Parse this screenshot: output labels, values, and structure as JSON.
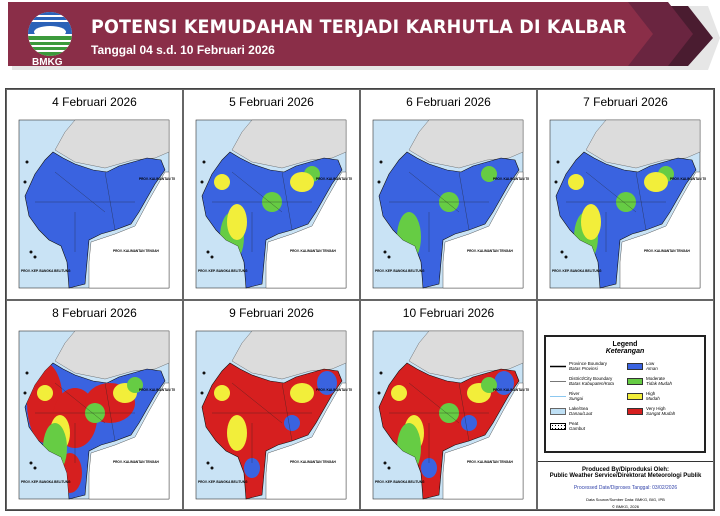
{
  "header": {
    "title": "POTENSI KEMUDAHAN TERJADI KARHUTLA DI KALBAR",
    "subtitle": "Tanggal  04 s.d. 10 Februari  2026",
    "logo_text": "BMKG",
    "color": "#8a2e48"
  },
  "map_labels": {
    "kalteng": "PROV. KALIMANTAN TENGAH",
    "kaltim": "PROV. KALIMANTAN TIMUR",
    "babel": "PROV. KEP. BANGKA BELITUNG"
  },
  "levels": {
    "low": "#3a63e0",
    "moderate": "#66cc44",
    "high": "#f2ee3a",
    "very_high": "#d61f1f"
  },
  "maps": [
    {
      "date": "4 Februari 2026",
      "dominant": "low",
      "patches": []
    },
    {
      "date": "5 Februari 2026",
      "dominant": "low",
      "patches": [
        "moderate",
        "high"
      ]
    },
    {
      "date": "6 Februari 2026",
      "dominant": "low",
      "patches": [
        "moderate"
      ]
    },
    {
      "date": "7 Februari 2026",
      "dominant": "low",
      "patches": [
        "moderate",
        "high"
      ]
    },
    {
      "date": "8 Februari 2026",
      "dominant": "low",
      "patches": [
        "very_high",
        "high",
        "moderate"
      ]
    },
    {
      "date": "9 Februari 2026",
      "dominant": "very_high",
      "patches": [
        "high",
        "low"
      ]
    },
    {
      "date": "10 Februari 2026",
      "dominant": "very_high",
      "patches": [
        "high",
        "low",
        "moderate"
      ]
    }
  ],
  "legend": {
    "title": "Legend",
    "title_id": "Keterangan",
    "lines": [
      {
        "en": "Province Boundary",
        "id": "Batas Provinsi"
      },
      {
        "en": "District/City Boundary",
        "id": "Batas Kabupaten/Kota"
      },
      {
        "en": "River",
        "id": "Sungai"
      },
      {
        "en": "Lake/Sea",
        "id": "Danau/Laut"
      },
      {
        "en": "Peat",
        "id": "Gambut"
      }
    ],
    "classes": [
      {
        "en": "Low",
        "id": "Aman",
        "color": "#3a63e0"
      },
      {
        "en": "Moderate",
        "id": "Tidak Mudah",
        "color": "#66cc44"
      },
      {
        "en": "High",
        "id": "Mudah",
        "color": "#f2ee3a"
      },
      {
        "en": "Very High",
        "id": "Sangat Mudah",
        "color": "#d61f1f"
      }
    ],
    "produced": "Produced By/Diproduksi Oleh:",
    "service": "Public Weather Service/Direktorat Meteorologi Publik",
    "processed": "Processed Date/Diproses Tanggal: 03/02/2026",
    "source": "Data Source/Sumber Data: BMKG, BIG, IPB",
    "copyright": "© BMKG, 2026"
  }
}
